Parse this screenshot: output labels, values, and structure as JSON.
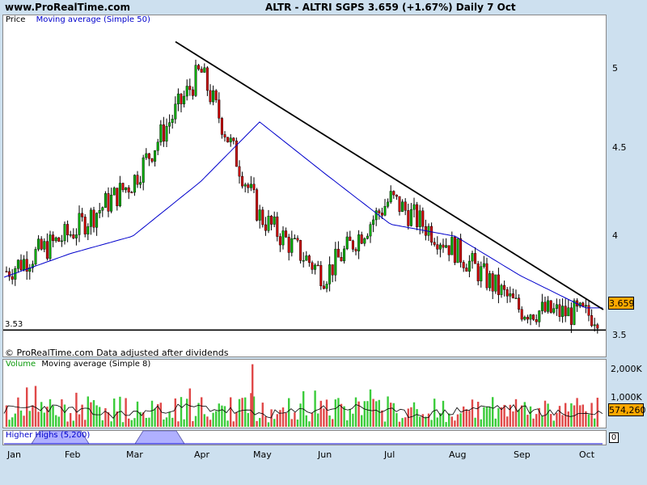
{
  "header": {
    "site": "www.ProRealTime.com",
    "title": "ALTR - ALTRI SGPS    3.659 (+1.67%)    Daily  7 Oct"
  },
  "price_panel": {
    "label_price": "Price",
    "label_ma": "Moving average (Simple 50)",
    "support_label": "3.53",
    "last_price": "3.659",
    "footer": "© ProRealTime.com Data adjusted after dividends",
    "y_ticks": [
      "5",
      "4.5",
      "4",
      "3.5"
    ]
  },
  "volume_panel": {
    "label_volume": "Volume",
    "label_ma": "Moving average (Simple 8)",
    "y_ticks": [
      "2,000K",
      "1,000K"
    ],
    "last_volume": "574,260"
  },
  "indicator_panel": {
    "label": "Higher Highs (5,200)",
    "value": "0"
  },
  "x_axis": {
    "months": [
      "Jan",
      "Feb",
      "Mar",
      "Apr",
      "May",
      "Jun",
      "Jul",
      "Aug",
      "Sep",
      "Oct"
    ]
  },
  "colors": {
    "background": "#cde0ef",
    "ma_line": "#0000cc",
    "up_bar": "#00aa00",
    "down_bar": "#cc0000",
    "volume_up": "#3bcc3b",
    "volume_down": "#e04848",
    "indicator_fill": "#b0b0ff",
    "highlight": "#ffa800"
  },
  "chart_data": {
    "type": "line",
    "series": [
      {
        "name": "Price",
        "x": [
          "Jan",
          "Feb",
          "Mar",
          "Apr",
          "May",
          "Jun",
          "Jul",
          "Aug",
          "Sep",
          "Oct"
        ],
        "values": [
          3.9,
          4.1,
          4.4,
          5.05,
          4.2,
          3.85,
          4.3,
          4.0,
          3.65,
          3.62
        ]
      },
      {
        "name": "Moving average (Simple 50)",
        "x": [
          "Jan",
          "Feb",
          "Mar",
          "Apr",
          "May",
          "Jun",
          "Jul",
          "Aug",
          "Sep",
          "Oct"
        ],
        "values": [
          3.86,
          3.98,
          4.08,
          4.4,
          4.75,
          4.45,
          4.15,
          4.08,
          3.85,
          3.66
        ]
      }
    ],
    "ylim": [
      3.38,
      5.37
    ],
    "support_level": 3.53,
    "trendline": [
      {
        "x": "Mar",
        "y": 5.22
      },
      {
        "x": "Oct",
        "y": 3.65
      }
    ],
    "volume": {
      "ylim": [
        0,
        2250
      ],
      "unit": "K",
      "peak": 2150,
      "ma_level": 550
    },
    "higher_highs": {
      "active_periods": [
        [
          "Jan",
          "Feb"
        ],
        [
          "Mar",
          "Apr"
        ]
      ]
    }
  }
}
